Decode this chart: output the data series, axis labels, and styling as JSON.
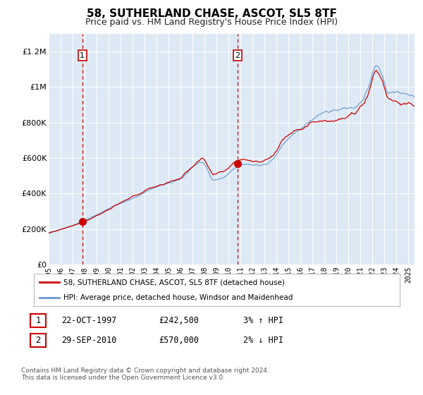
{
  "title": "58, SUTHERLAND CHASE, ASCOT, SL5 8TF",
  "subtitle": "Price paid vs. HM Land Registry's House Price Index (HPI)",
  "title_fontsize": 11,
  "subtitle_fontsize": 9,
  "background_color": "#ffffff",
  "plot_bg_color": "#ddeaf5",
  "grid_color": "#ffffff",
  "hpi_line_color": "#6699cc",
  "price_line_color": "#cc0000",
  "sale1_x": 1997.81,
  "sale1_y": 242500,
  "sale1_label": "1",
  "sale2_x": 2010.75,
  "sale2_y": 570000,
  "sale2_label": "2",
  "dashed_line_color": "#cc0000",
  "marker_color": "#cc0000",
  "marker_size": 7,
  "ylim": [
    0,
    1300000
  ],
  "xlim_start": 1995.0,
  "xlim_end": 2025.5,
  "yticks": [
    0,
    200000,
    400000,
    600000,
    800000,
    1000000,
    1200000
  ],
  "ytick_labels": [
    "£0",
    "£200K",
    "£400K",
    "£600K",
    "£800K",
    "£1M",
    "£1.2M"
  ],
  "xtick_years": [
    1995,
    1996,
    1997,
    1998,
    1999,
    2000,
    2001,
    2002,
    2003,
    2004,
    2005,
    2006,
    2007,
    2008,
    2009,
    2010,
    2011,
    2012,
    2013,
    2014,
    2015,
    2016,
    2017,
    2018,
    2019,
    2020,
    2021,
    2022,
    2023,
    2024,
    2025
  ],
  "legend_entries": [
    "58, SUTHERLAND CHASE, ASCOT, SL5 8TF (detached house)",
    "HPI: Average price, detached house, Windsor and Maidenhead"
  ],
  "annotation1_date": "22-OCT-1997",
  "annotation1_price": "£242,500",
  "annotation1_hpi": "3% ↑ HPI",
  "annotation2_date": "29-SEP-2010",
  "annotation2_price": "£570,000",
  "annotation2_hpi": "2% ↓ HPI",
  "footer_text": "Contains HM Land Registry data © Crown copyright and database right 2024.\nThis data is licensed under the Open Government Licence v3.0."
}
